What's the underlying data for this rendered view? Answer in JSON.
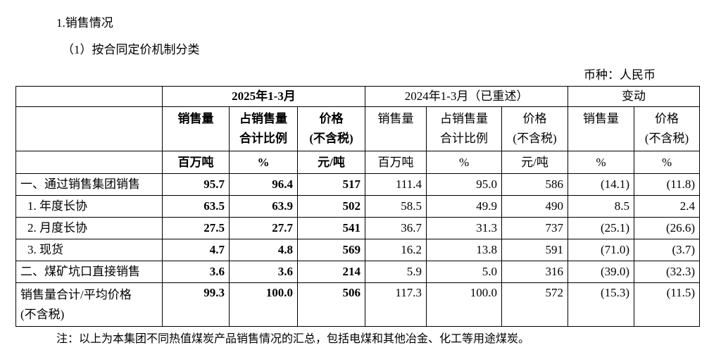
{
  "header": {
    "section": "1.销售情况",
    "subsection": "（1）按合同定价机制分类",
    "currency": "币种：人民币"
  },
  "table": {
    "periods": [
      "2025年1-3月",
      "2024年1-3月（已重述）",
      "变动"
    ],
    "columns": [
      [
        "销售量"
      ],
      [
        "占销售量",
        "合计比例"
      ],
      [
        "价格",
        "(不含税)"
      ],
      [
        "销售量"
      ],
      [
        "占销售量",
        "合计比例"
      ],
      [
        "价格",
        "(不含税)"
      ],
      [
        "销售量"
      ],
      [
        "价格",
        "(不含税)"
      ]
    ],
    "units": [
      "百万吨",
      "%",
      "元/吨",
      "百万吨",
      "%",
      "元/吨",
      "%",
      "%"
    ],
    "rows": [
      {
        "label": [
          "一、通过销售集团销售"
        ],
        "values": [
          "95.7",
          "96.4",
          "517",
          "111.4",
          "95.0",
          "586",
          "(14.1)",
          "(11.8)"
        ]
      },
      {
        "label": [
          "1. 年度长协"
        ],
        "values": [
          "63.5",
          "63.9",
          "502",
          "58.5",
          "49.9",
          "490",
          "8.5",
          "2.4"
        ]
      },
      {
        "label": [
          "2. 月度长协"
        ],
        "values": [
          "27.5",
          "27.7",
          "541",
          "36.7",
          "31.3",
          "737",
          "(25.1)",
          "(26.6)"
        ]
      },
      {
        "label": [
          "3. 现货"
        ],
        "values": [
          "4.7",
          "4.8",
          "569",
          "16.2",
          "13.8",
          "591",
          "(71.0)",
          "(3.7)"
        ]
      },
      {
        "label": [
          "二、煤矿坑口直接销售"
        ],
        "values": [
          "3.6",
          "3.6",
          "214",
          "5.9",
          "5.0",
          "316",
          "(39.0)",
          "(32.3)"
        ]
      },
      {
        "label": [
          "销售量合计/平均价格",
          "(不含税)"
        ],
        "values": [
          "99.3",
          "100.0",
          "506",
          "117.3",
          "100.0",
          "572",
          "(15.3)",
          "(11.5)"
        ]
      }
    ]
  },
  "note": "注：以上为本集团不同热值煤炭产品销售情况的汇总，包括电煤和其他冶金、化工等用途煤炭。"
}
